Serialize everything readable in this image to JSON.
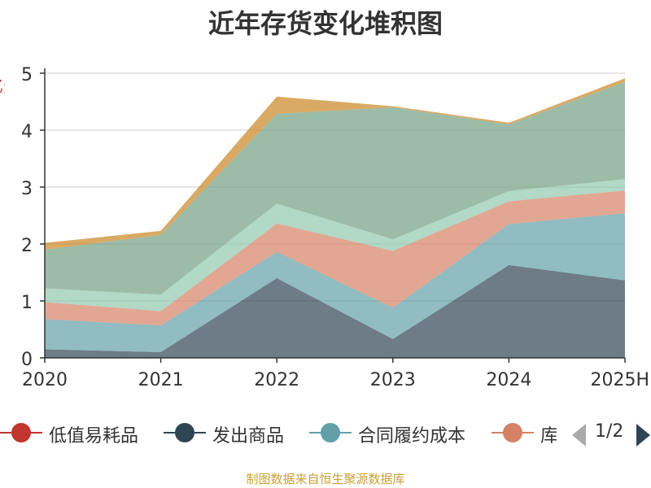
{
  "chart_data": {
    "type": "area",
    "stacked": true,
    "title": "近年存货变化堆积图",
    "ylabel": "亿元",
    "categories": [
      "2020",
      "2021",
      "2022",
      "2023",
      "2024",
      "2025H"
    ],
    "ylim": [
      0,
      5
    ],
    "yticks": [
      0,
      1,
      2,
      3,
      4,
      5
    ],
    "grid": true,
    "legend_position": "bottom",
    "series": [
      {
        "name": "低值易耗品",
        "color": "#c23531",
        "values": [
          0,
          0,
          0,
          0,
          0,
          0
        ]
      },
      {
        "name": "发出商品",
        "color": "#2f4554",
        "values": [
          0.15,
          0.1,
          1.4,
          0.33,
          1.63,
          1.36
        ]
      },
      {
        "name": "合同履约成本",
        "color": "#61a0a8",
        "values": [
          0.53,
          0.47,
          0.46,
          0.55,
          0.72,
          1.18
        ]
      },
      {
        "name": "库存商品",
        "color": "#d48265",
        "values": [
          0.3,
          0.25,
          0.5,
          1.0,
          0.4,
          0.4
        ]
      },
      {
        "name": "",
        "color": "#91c7ae",
        "values": [
          0.24,
          0.29,
          0.35,
          0.2,
          0.18,
          0.2
        ]
      },
      {
        "name": "",
        "color": "#749f83",
        "values": [
          0.68,
          1.05,
          1.58,
          2.32,
          1.17,
          1.71
        ]
      },
      {
        "name": "",
        "color": "#ca8622",
        "values": [
          0.12,
          0.07,
          0.3,
          0.02,
          0.03,
          0.06
        ]
      }
    ]
  },
  "legend": {
    "items": [
      {
        "label": "低值易耗品",
        "color": "#c23531"
      },
      {
        "label": "发出商品",
        "color": "#2f4554"
      },
      {
        "label": "合同履约成本",
        "color": "#61a0a8"
      },
      {
        "label": "库",
        "color": "#d48265"
      }
    ],
    "pager": "1/2"
  },
  "footer": "制图数据来自恒生聚源数据库"
}
